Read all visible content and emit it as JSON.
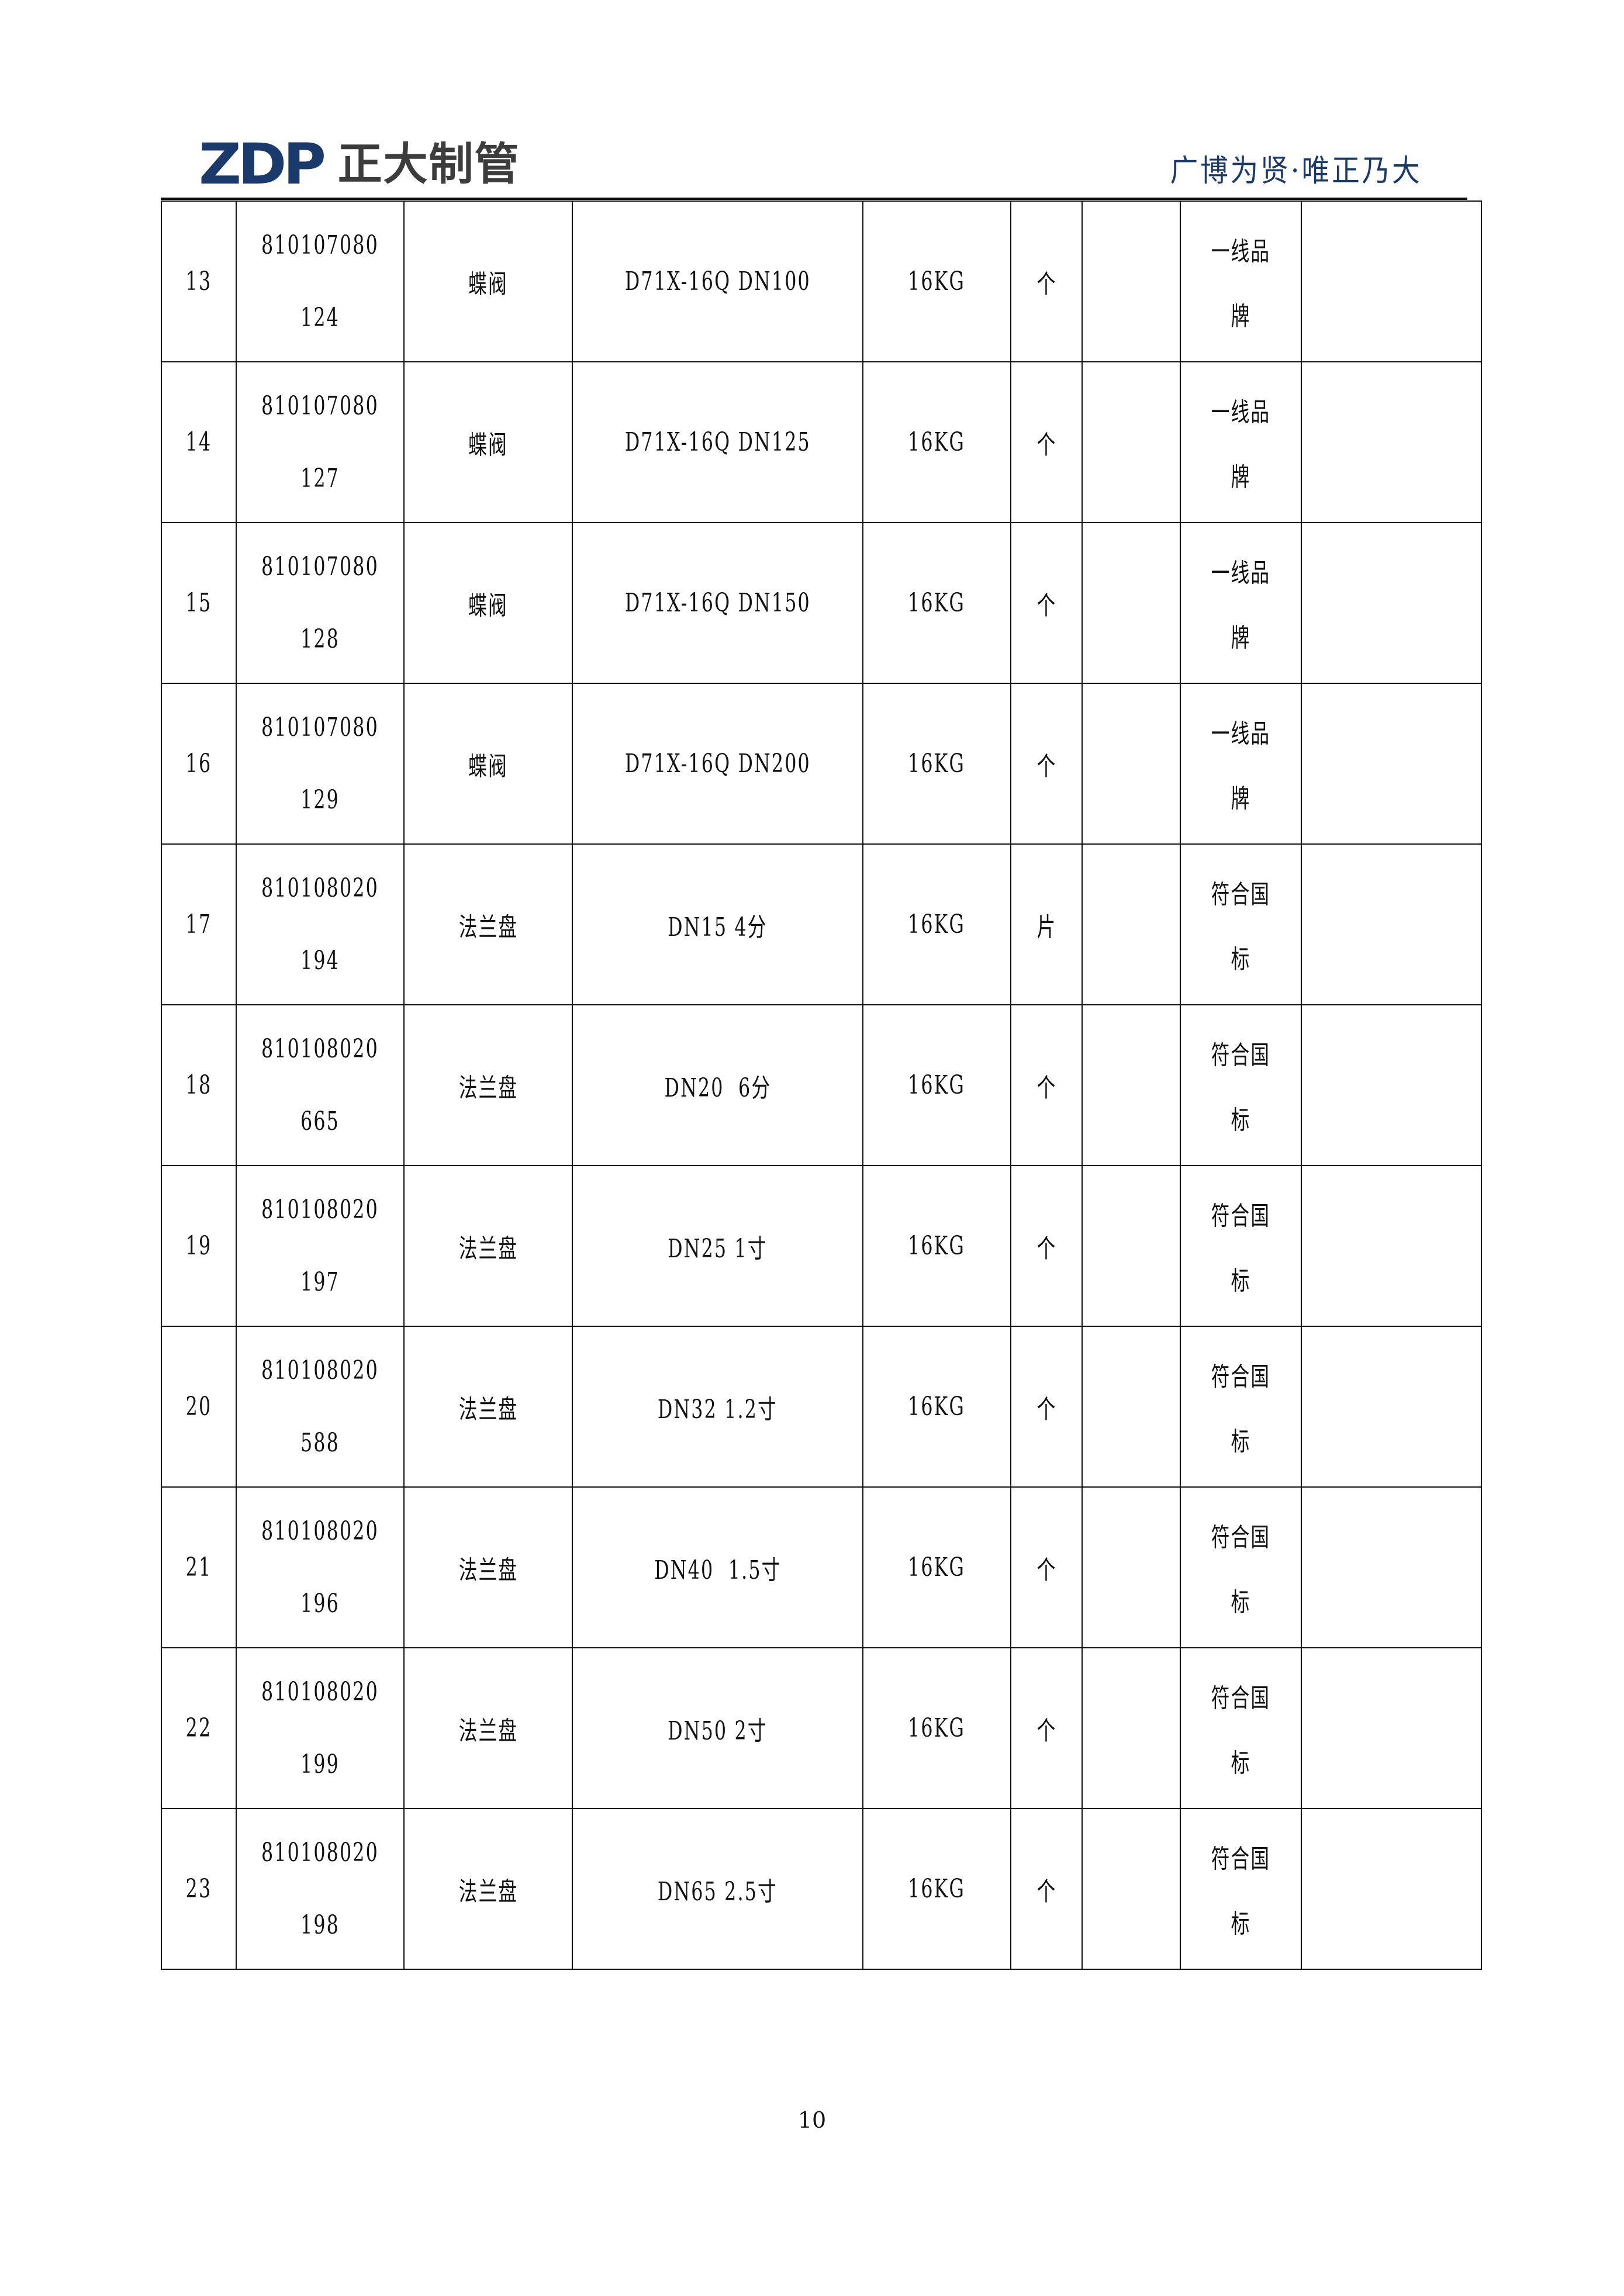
{
  "header": {
    "logo_mark": "ZDP",
    "logo_text": "正大制管",
    "slogan": "广博为贤·唯正乃大",
    "brand_color": "#1a3a6b"
  },
  "table": {
    "rows": [
      {
        "no": "13",
        "code": [
          "810107080",
          "124"
        ],
        "name": "蝶阀",
        "spec": "D71X-16Q DN100",
        "pressure": "16KG",
        "unit": "个",
        "qty": "",
        "quality": [
          "一线品",
          "牌"
        ],
        "remark": ""
      },
      {
        "no": "14",
        "code": [
          "810107080",
          "127"
        ],
        "name": "蝶阀",
        "spec": "D71X-16Q DN125",
        "pressure": "16KG",
        "unit": "个",
        "qty": "",
        "quality": [
          "一线品",
          "牌"
        ],
        "remark": ""
      },
      {
        "no": "15",
        "code": [
          "810107080",
          "128"
        ],
        "name": "蝶阀",
        "spec": "D71X-16Q DN150",
        "pressure": "16KG",
        "unit": "个",
        "qty": "",
        "quality": [
          "一线品",
          "牌"
        ],
        "remark": ""
      },
      {
        "no": "16",
        "code": [
          "810107080",
          "129"
        ],
        "name": "蝶阀",
        "spec": "D71X-16Q DN200",
        "pressure": "16KG",
        "unit": "个",
        "qty": "",
        "quality": [
          "一线品",
          "牌"
        ],
        "remark": ""
      },
      {
        "no": "17",
        "code": [
          "810108020",
          "194"
        ],
        "name": "法兰盘",
        "spec": "DN15 4分",
        "pressure": "16KG",
        "unit": "片",
        "qty": "",
        "quality": [
          "符合国",
          "标"
        ],
        "remark": ""
      },
      {
        "no": "18",
        "code": [
          "810108020",
          "665"
        ],
        "name": "法兰盘",
        "spec": "DN20  6分",
        "pressure": "16KG",
        "unit": "个",
        "qty": "",
        "quality": [
          "符合国",
          "标"
        ],
        "remark": ""
      },
      {
        "no": "19",
        "code": [
          "810108020",
          "197"
        ],
        "name": "法兰盘",
        "spec": "DN25 1寸",
        "pressure": "16KG",
        "unit": "个",
        "qty": "",
        "quality": [
          "符合国",
          "标"
        ],
        "remark": ""
      },
      {
        "no": "20",
        "code": [
          "810108020",
          "588"
        ],
        "name": "法兰盘",
        "spec": "DN32 1.2寸",
        "pressure": "16KG",
        "unit": "个",
        "qty": "",
        "quality": [
          "符合国",
          "标"
        ],
        "remark": ""
      },
      {
        "no": "21",
        "code": [
          "810108020",
          "196"
        ],
        "name": "法兰盘",
        "spec": "DN40  1.5寸",
        "pressure": "16KG",
        "unit": "个",
        "qty": "",
        "quality": [
          "符合国",
          "标"
        ],
        "remark": ""
      },
      {
        "no": "22",
        "code": [
          "810108020",
          "199"
        ],
        "name": "法兰盘",
        "spec": "DN50 2寸",
        "pressure": "16KG",
        "unit": "个",
        "qty": "",
        "quality": [
          "符合国",
          "标"
        ],
        "remark": ""
      },
      {
        "no": "23",
        "code": [
          "810108020",
          "198"
        ],
        "name": "法兰盘",
        "spec": "DN65 2.5寸",
        "pressure": "16KG",
        "unit": "个",
        "qty": "",
        "quality": [
          "符合国",
          "标"
        ],
        "remark": ""
      }
    ]
  },
  "footer": {
    "page_number": "10"
  }
}
